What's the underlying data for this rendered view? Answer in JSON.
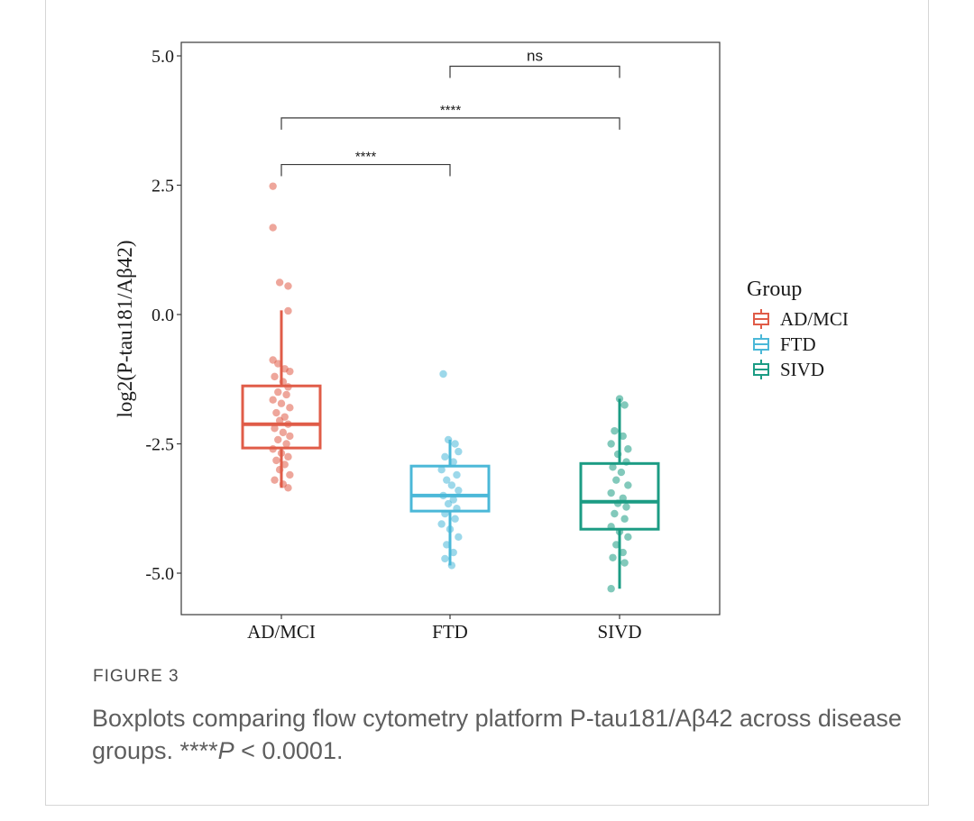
{
  "figure": {
    "label": "FIGURE 3",
    "caption_text": "Boxplots comparing flow cytometry platform P-tau181/Aβ42 across disease groups. ****",
    "caption_p": "P",
    "caption_rest": " < 0.0001."
  },
  "chart_data": {
    "type": "boxplot",
    "ylabel": "log2(P-tau181/Aβ42)",
    "xlabel": "",
    "ylim": [
      -5.8,
      5.3
    ],
    "yticks": [
      5.0,
      2.5,
      0.0,
      -2.5,
      -5.0
    ],
    "ytick_labels": [
      "5.0",
      "2.5",
      "0.0",
      "-2.5",
      "-5.0"
    ],
    "categories": [
      "AD/MCI",
      "FTD",
      "SIVD"
    ],
    "legend": {
      "title": "Group",
      "placement": "right",
      "entries": [
        "AD/MCI",
        "FTD",
        "SIVD"
      ]
    },
    "colors": {
      "AD/MCI": "#e05c48",
      "FTD": "#4bb8d8",
      "SIVD": "#1c9c84"
    },
    "boxes": [
      {
        "group": "AD/MCI",
        "whisker_low": -3.35,
        "q1": -2.58,
        "median": -2.12,
        "q3": -1.38,
        "whisker_high": 0.08
      },
      {
        "group": "FTD",
        "whisker_low": -4.85,
        "q1": -3.8,
        "median": -3.5,
        "q3": -2.93,
        "whisker_high": -2.42
      },
      {
        "group": "SIVD",
        "whisker_low": -5.3,
        "q1": -4.15,
        "median": -3.62,
        "q3": -2.88,
        "whisker_high": -1.63
      }
    ],
    "points": {
      "AD/MCI": [
        {
          "dx": -0.05,
          "y": 2.48
        },
        {
          "dx": -0.05,
          "y": 1.68
        },
        {
          "dx": -0.01,
          "y": 0.62
        },
        {
          "dx": 0.04,
          "y": 0.55
        },
        {
          "dx": 0.04,
          "y": 0.07
        },
        {
          "dx": -0.05,
          "y": -0.88
        },
        {
          "dx": -0.02,
          "y": -0.95
        },
        {
          "dx": 0.02,
          "y": -1.05
        },
        {
          "dx": 0.05,
          "y": -1.1
        },
        {
          "dx": -0.04,
          "y": -1.2
        },
        {
          "dx": 0.01,
          "y": -1.3
        },
        {
          "dx": 0.04,
          "y": -1.4
        },
        {
          "dx": -0.02,
          "y": -1.5
        },
        {
          "dx": 0.03,
          "y": -1.55
        },
        {
          "dx": -0.05,
          "y": -1.65
        },
        {
          "dx": 0.0,
          "y": -1.72
        },
        {
          "dx": 0.05,
          "y": -1.8
        },
        {
          "dx": -0.03,
          "y": -1.9
        },
        {
          "dx": 0.02,
          "y": -1.98
        },
        {
          "dx": -0.01,
          "y": -2.05
        },
        {
          "dx": 0.04,
          "y": -2.12
        },
        {
          "dx": -0.04,
          "y": -2.2
        },
        {
          "dx": 0.01,
          "y": -2.28
        },
        {
          "dx": 0.05,
          "y": -2.35
        },
        {
          "dx": -0.02,
          "y": -2.42
        },
        {
          "dx": 0.03,
          "y": -2.5
        },
        {
          "dx": -0.05,
          "y": -2.6
        },
        {
          "dx": 0.0,
          "y": -2.68
        },
        {
          "dx": 0.04,
          "y": -2.75
        },
        {
          "dx": -0.03,
          "y": -2.82
        },
        {
          "dx": 0.02,
          "y": -2.9
        },
        {
          "dx": -0.01,
          "y": -3.0
        },
        {
          "dx": 0.05,
          "y": -3.1
        },
        {
          "dx": -0.04,
          "y": -3.2
        },
        {
          "dx": 0.01,
          "y": -3.28
        },
        {
          "dx": 0.04,
          "y": -3.35
        }
      ],
      "FTD": [
        {
          "dx": -0.04,
          "y": -1.15
        },
        {
          "dx": -0.01,
          "y": -2.42
        },
        {
          "dx": 0.03,
          "y": -2.5
        },
        {
          "dx": 0.05,
          "y": -2.65
        },
        {
          "dx": -0.03,
          "y": -2.75
        },
        {
          "dx": 0.02,
          "y": -2.85
        },
        {
          "dx": -0.05,
          "y": -3.0
        },
        {
          "dx": 0.04,
          "y": -3.1
        },
        {
          "dx": -0.02,
          "y": -3.2
        },
        {
          "dx": 0.01,
          "y": -3.3
        },
        {
          "dx": 0.05,
          "y": -3.4
        },
        {
          "dx": -0.04,
          "y": -3.5
        },
        {
          "dx": 0.02,
          "y": -3.58
        },
        {
          "dx": -0.01,
          "y": -3.66
        },
        {
          "dx": 0.04,
          "y": -3.75
        },
        {
          "dx": -0.03,
          "y": -3.85
        },
        {
          "dx": 0.03,
          "y": -3.95
        },
        {
          "dx": -0.05,
          "y": -4.05
        },
        {
          "dx": 0.0,
          "y": -4.15
        },
        {
          "dx": 0.05,
          "y": -4.3
        },
        {
          "dx": -0.02,
          "y": -4.45
        },
        {
          "dx": 0.02,
          "y": -4.6
        },
        {
          "dx": -0.03,
          "y": -4.72
        },
        {
          "dx": 0.01,
          "y": -4.85
        }
      ],
      "SIVD": [
        {
          "dx": 0.0,
          "y": -1.63
        },
        {
          "dx": 0.03,
          "y": -1.75
        },
        {
          "dx": -0.03,
          "y": -2.25
        },
        {
          "dx": 0.02,
          "y": -2.35
        },
        {
          "dx": -0.05,
          "y": -2.5
        },
        {
          "dx": 0.05,
          "y": -2.6
        },
        {
          "dx": -0.01,
          "y": -2.7
        },
        {
          "dx": 0.04,
          "y": -2.85
        },
        {
          "dx": -0.04,
          "y": -2.95
        },
        {
          "dx": 0.01,
          "y": -3.05
        },
        {
          "dx": -0.02,
          "y": -3.2
        },
        {
          "dx": 0.05,
          "y": -3.3
        },
        {
          "dx": -0.05,
          "y": -3.45
        },
        {
          "dx": 0.02,
          "y": -3.55
        },
        {
          "dx": -0.01,
          "y": -3.65
        },
        {
          "dx": 0.04,
          "y": -3.72
        },
        {
          "dx": -0.03,
          "y": -3.85
        },
        {
          "dx": 0.03,
          "y": -3.95
        },
        {
          "dx": -0.05,
          "y": -4.1
        },
        {
          "dx": 0.0,
          "y": -4.2
        },
        {
          "dx": 0.05,
          "y": -4.3
        },
        {
          "dx": -0.02,
          "y": -4.45
        },
        {
          "dx": 0.02,
          "y": -4.6
        },
        {
          "dx": -0.04,
          "y": -4.7
        },
        {
          "dx": 0.03,
          "y": -4.8
        },
        {
          "dx": -0.05,
          "y": -5.3
        }
      ]
    },
    "comparisons": [
      {
        "from": "FTD",
        "to": "SIVD",
        "label": "ns",
        "y": 4.8
      },
      {
        "from": "AD/MCI",
        "to": "SIVD",
        "label": "****",
        "y": 3.8
      },
      {
        "from": "AD/MCI",
        "to": "FTD",
        "label": "****",
        "y": 2.9
      }
    ]
  }
}
